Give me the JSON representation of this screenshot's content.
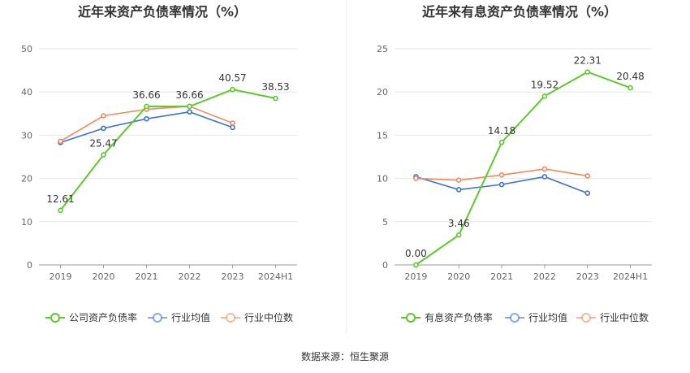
{
  "source_text": "数据来源：恒生聚源",
  "chart_data": [
    {
      "type": "line",
      "title": "近年来资产负债率情况（%）",
      "categories": [
        "2019",
        "2020",
        "2021",
        "2022",
        "2023",
        "2024H1"
      ],
      "ylim": [
        0,
        50
      ],
      "yticks": [
        "0",
        "10",
        "20",
        "30",
        "40",
        "50"
      ],
      "grid": true,
      "legend_position": "bottom",
      "series": [
        {
          "name": "公司资产负债率",
          "color": "#5cc92d",
          "values": [
            12.61,
            25.47,
            36.66,
            36.66,
            40.57,
            38.53
          ],
          "labels": [
            "12.61",
            "25.47",
            "36.66",
            "36.66",
            "40.57",
            "38.53"
          ]
        },
        {
          "name": "行业均值",
          "color": "#3a72d8",
          "values": [
            28.3,
            31.6,
            33.8,
            35.4,
            31.8,
            null
          ]
        },
        {
          "name": "行业中位数",
          "color": "#ef8a5c",
          "values": [
            28.6,
            34.5,
            36.0,
            36.7,
            32.8,
            null
          ]
        }
      ]
    },
    {
      "type": "line",
      "title": "近年来有息资产负债率情况（%）",
      "categories": [
        "2019",
        "2020",
        "2021",
        "2022",
        "2023",
        "2024H1"
      ],
      "ylim": [
        0,
        25
      ],
      "yticks": [
        "0",
        "5",
        "10",
        "15",
        "20",
        "25"
      ],
      "grid": true,
      "legend_position": "bottom",
      "series": [
        {
          "name": "有息资产负债率",
          "color": "#5cc92d",
          "values": [
            0.0,
            3.46,
            14.18,
            19.52,
            22.31,
            20.48
          ],
          "labels": [
            "0.00",
            "3.46",
            "14.18",
            "19.52",
            "22.31",
            "20.48"
          ]
        },
        {
          "name": "行业均值",
          "color": "#3a72d8",
          "values": [
            10.2,
            8.7,
            9.3,
            10.2,
            8.3,
            null
          ]
        },
        {
          "name": "行业中位数",
          "color": "#ef8a5c",
          "values": [
            10.0,
            9.8,
            10.4,
            11.1,
            10.3,
            null
          ]
        }
      ]
    }
  ]
}
